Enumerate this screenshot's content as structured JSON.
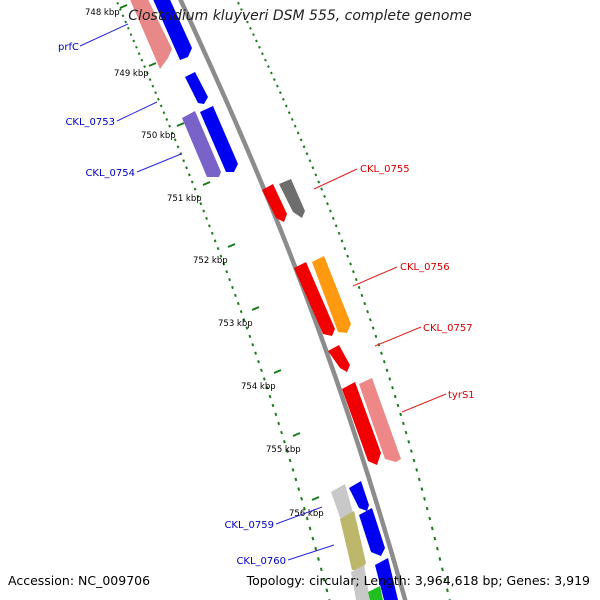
{
  "title": "Clostridium kluyveri DSM 555, complete genome",
  "footer": {
    "accession": "Accession: NC_009706",
    "topology": "Topology: circular; Length: 3,964,618 bp; Genes: 3,919"
  },
  "colors": {
    "backbone": "#8c8c8c",
    "tick": "#1e7a1e",
    "label_forward": "#0000c8",
    "label_reverse": "#d40000",
    "leader_forward": "#2828dc",
    "leader_reverse": "#e02020"
  },
  "ticks": [
    "748 kbp",
    "749 kbp",
    "750 kbp",
    "751 kbp",
    "752 kbp",
    "753 kbp",
    "754 kbp",
    "755 kbp",
    "756 kbp"
  ],
  "genes": [
    {
      "id": "g-prfc-cds",
      "color": "#e88888",
      "label": ""
    },
    {
      "id": "g-prfc-gene",
      "color": "#0000f0",
      "label": ""
    },
    {
      "id": "g-small-blue",
      "color": "#0000f0",
      "label": ""
    },
    {
      "id": "g-ckl0753",
      "color": "#0000f0",
      "label": ""
    },
    {
      "id": "g-ckl0754",
      "color": "#7a63c8",
      "label": ""
    },
    {
      "id": "g-ckl0755-a",
      "color": "#f00000",
      "label": ""
    },
    {
      "id": "g-ckl0755-b",
      "color": "#6e6e6e",
      "label": ""
    },
    {
      "id": "g-ckl0756-a",
      "color": "#f00000",
      "label": ""
    },
    {
      "id": "g-ckl0756-b",
      "color": "#ff9a10",
      "label": ""
    },
    {
      "id": "g-ckl0757",
      "color": "#f00000",
      "label": ""
    },
    {
      "id": "g-tyrs1-a",
      "color": "#f00000",
      "label": ""
    },
    {
      "id": "g-tyrs1-b",
      "color": "#ee8888",
      "label": ""
    },
    {
      "id": "g-ckl0759-a",
      "color": "#c8c8c8",
      "label": ""
    },
    {
      "id": "g-ckl0759-b",
      "color": "#0000f0",
      "label": ""
    },
    {
      "id": "g-ckl0760-a",
      "color": "#bdb76b",
      "label": ""
    },
    {
      "id": "g-ckl0760-b",
      "color": "#0000f0",
      "label": ""
    },
    {
      "id": "g-bottom-a",
      "color": "#c8c8c8",
      "label": ""
    },
    {
      "id": "g-bottom-b",
      "color": "#0000f0",
      "label": ""
    },
    {
      "id": "g-bottom-c",
      "color": "#20c020",
      "label": ""
    }
  ],
  "gene_labels": {
    "prfC": "prfC",
    "CKL_0753": "CKL_0753",
    "CKL_0754": "CKL_0754",
    "CKL_0755": "CKL_0755",
    "CKL_0756": "CKL_0756",
    "CKL_0757": "CKL_0757",
    "tyrS1": "tyrS1",
    "CKL_0759": "CKL_0759",
    "CKL_0760": "CKL_0760"
  }
}
